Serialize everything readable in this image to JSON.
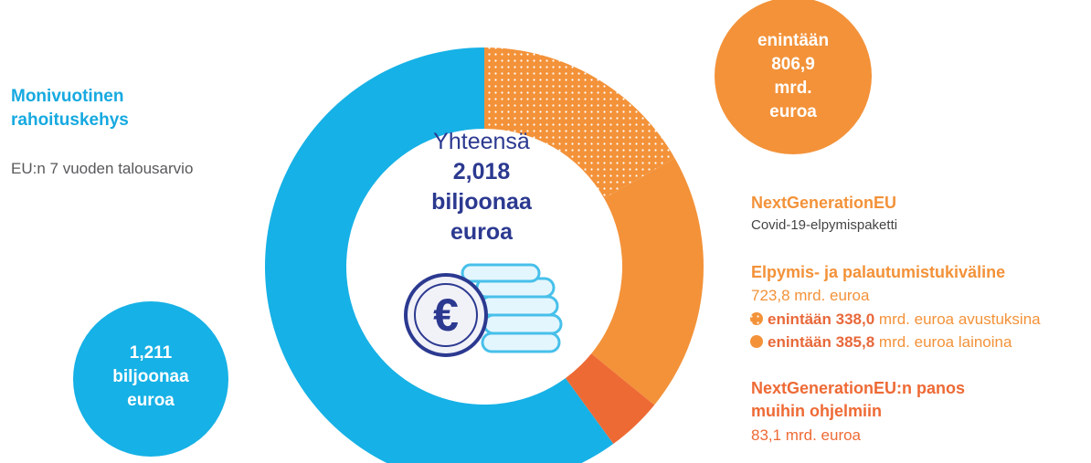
{
  "left": {
    "title": [
      "Monivuotinen",
      "rahoituskehys"
    ],
    "subtitle": "EU:n 7 vuoden talousarvio",
    "bubble": [
      "1,211",
      "biljoonaa",
      "euroa"
    ]
  },
  "top_bubble": [
    "enintään",
    "806,9",
    "mrd.",
    "euroa"
  ],
  "center": [
    "Yhteensä",
    "2,018",
    "biljoonaa",
    "euroa"
  ],
  "right": {
    "title": "NextGenerationEU",
    "subtitle": "Covid-19-elpymispaketti",
    "facility": "Elpymis- ja palautumistukiväline",
    "facility_amount": "723,8 mrd. euroa",
    "grants": {
      "bold": "enintään 338,0",
      "rest": "mrd. euroa avustuksina"
    },
    "loans": {
      "bold": "enintään 385,8",
      "rest": "mrd. euroa lainoina"
    },
    "other": [
      "NextGenerationEU:n panos",
      "muihin ohjelmiin"
    ],
    "other_amount": "83,1 mrd. euroa"
  },
  "chart_data": {
    "type": "donut",
    "values": [
      338.0,
      385.8,
      83.1,
      1211
    ],
    "colors": [
      "#f39239",
      "#f39239",
      "#ee6a35",
      "#16b1e6"
    ],
    "dotted": [
      true,
      false,
      false,
      false
    ]
  }
}
